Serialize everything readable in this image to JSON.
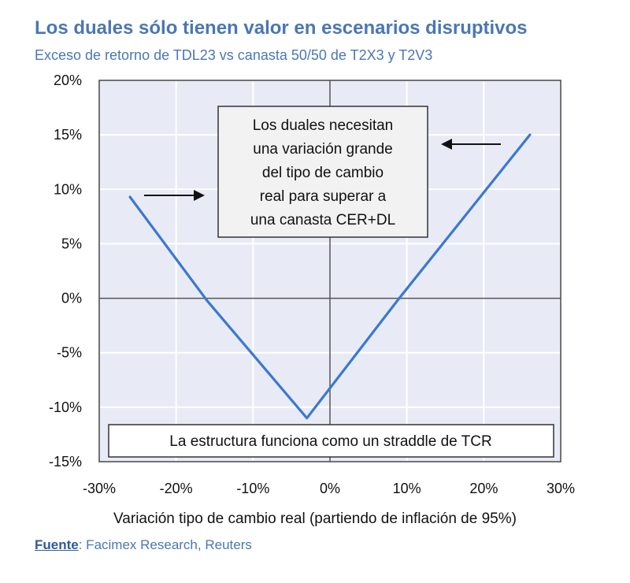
{
  "title": "Los duales sólo tienen valor en escenarios disruptivos",
  "subtitle": "Exceso de retorno de TDL23 vs canasta 50/50 de T2X3 y T2V3",
  "source": {
    "label": "Fuente",
    "text": ": Facimex Research, Reuters"
  },
  "colors": {
    "line": "#3b78d0",
    "title": "#4a77b4",
    "plot_bg": "#e8ebf6",
    "grid": "#ffffff"
  },
  "chart_data": {
    "type": "line",
    "title": "Los duales sólo tienen valor en escenarios disruptivos",
    "subtitle": "Exceso de retorno de TDL23 vs canasta 50/50 de T2X3 y T2V3",
    "xlabel": "Variación tipo de cambio real (partiendo de inflación de 95%)",
    "ylabel": "",
    "xlim": [
      -30,
      30
    ],
    "ylim": [
      -15,
      20
    ],
    "x_ticks": [
      -30,
      -20,
      -10,
      0,
      10,
      20,
      30
    ],
    "y_ticks": [
      -15,
      -10,
      -5,
      0,
      5,
      10,
      15,
      20
    ],
    "x_tick_labels": [
      "-30%",
      "-20%",
      "-10%",
      "0%",
      "10%",
      "20%",
      "30%"
    ],
    "y_tick_labels": [
      "-15%",
      "-10%",
      "-5%",
      "0%",
      "5%",
      "10%",
      "15%",
      "20%"
    ],
    "grid": true,
    "series": [
      {
        "values": [
          [
            -26,
            9.3
          ],
          [
            -16,
            -0.2
          ],
          [
            -3,
            -11
          ],
          [
            9,
            0
          ],
          [
            26,
            15
          ]
        ]
      }
    ],
    "annotations": [
      {
        "lines": [
          "Los duales necesitan",
          "una variación grande",
          "del tipo de cambio",
          "real para superar a",
          "una canasta CER+DL"
        ]
      },
      {
        "lines": [
          "La estructura funciona como un straddle de TCR"
        ]
      }
    ]
  }
}
